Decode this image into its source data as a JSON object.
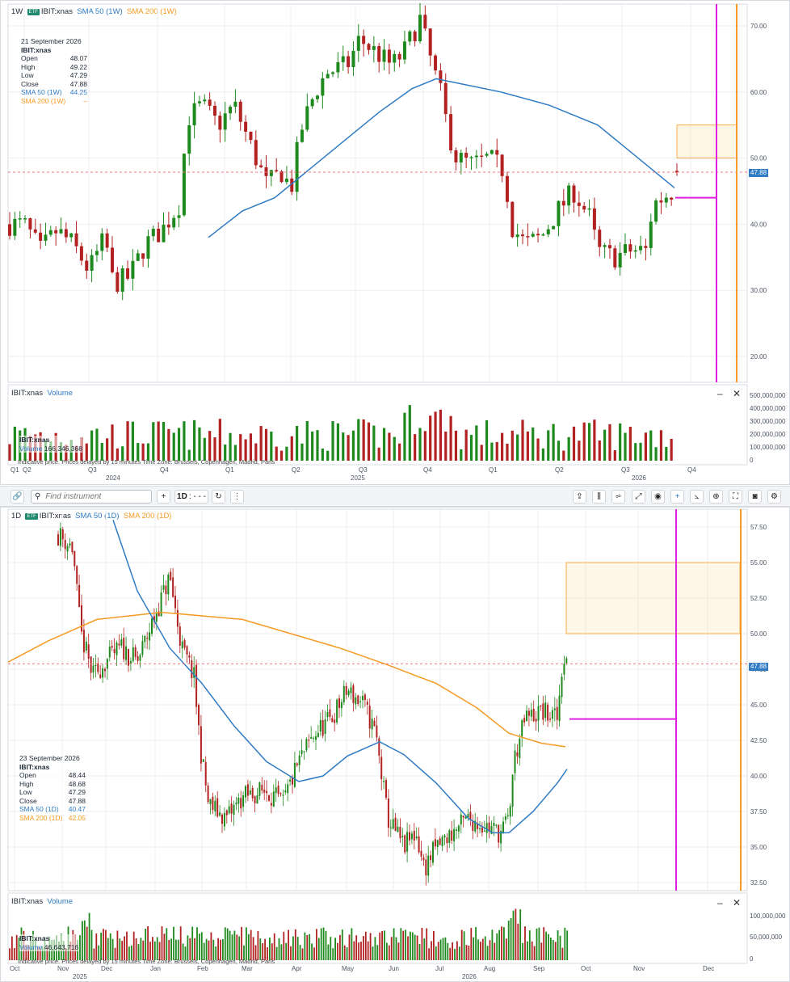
{
  "colors": {
    "up": "#1e8a1e",
    "down": "#b22222",
    "sma50": "#2f7bc4",
    "sma200": "#f59a23",
    "magenta": "#e020e0",
    "last_price_bg": "#2f7bc4"
  },
  "weekly": {
    "interval": "1W",
    "symbol": "IBIT:xnas",
    "sma50_label": "SMA 50 (1W)",
    "sma200_label": "SMA 200 (1W)",
    "y_ticks": [
      "70.00",
      "60.00",
      "50.00",
      "40.00",
      "30.00",
      "20.00"
    ],
    "last_price": "47.88",
    "legend": {
      "date": "21 September 2026",
      "symbol": "IBIT:xnas",
      "rows": [
        {
          "k": "Open",
          "v": "48.07"
        },
        {
          "k": "High",
          "v": "49.22"
        },
        {
          "k": "Low",
          "v": "47.29"
        },
        {
          "k": "Close",
          "v": "47.88"
        }
      ],
      "sma50": {
        "k": "SMA 50 (1W)",
        "v": "44.25"
      },
      "sma200": {
        "k": "SMA 200 (1W)",
        "v": "–"
      }
    },
    "volume": {
      "symbol": "IBIT:xnas",
      "label": "Volume",
      "y_ticks": [
        "500,000,000",
        "400,000,000",
        "300,000,000",
        "200,000,000",
        "100,000,000",
        "0"
      ],
      "legend_symbol": "IBIT:xnas",
      "legend_volume_label": "Volume",
      "legend_volume_value": "166,346,368",
      "footer": "Indicative price. Prices delayed by 15 minutes    Time Zone: Brussels, Copenhagen, Madrid, Paris",
      "x_top": [
        "Q1",
        "Q2",
        "Q3",
        "Q4",
        "Q1",
        "Q2",
        "Q3",
        "Q4",
        "Q1",
        "Q2",
        "Q3",
        "Q4"
      ],
      "x_years": [
        "2024",
        "2025",
        "2026"
      ]
    }
  },
  "toolbar": {
    "search_placeholder": "Find instrument",
    "add": "+",
    "interval": "1D",
    "interval_dashes": ": - - -"
  },
  "daily": {
    "interval": "1D",
    "symbol": "IBIT:xnas",
    "sma50_label": "SMA 50 (1D)",
    "sma200_label": "SMA 200 (1D)",
    "y_ticks": [
      "57.50",
      "55.00",
      "52.50",
      "50.00",
      "47.50",
      "45.00",
      "42.50",
      "40.00",
      "37.50",
      "35.00",
      "32.50"
    ],
    "last_price": "47.88",
    "legend": {
      "date": "23 September 2026",
      "symbol": "IBIT:xnas",
      "rows": [
        {
          "k": "Open",
          "v": "48.44"
        },
        {
          "k": "High",
          "v": "48.68"
        },
        {
          "k": "Low",
          "v": "47.29"
        },
        {
          "k": "Close",
          "v": "47.88"
        }
      ],
      "sma50": {
        "k": "SMA 50 (1D)",
        "v": "40.47"
      },
      "sma200": {
        "k": "SMA 200 (1D)",
        "v": "42.05"
      }
    },
    "volume": {
      "symbol": "IBIT:xnas",
      "label": "Volume",
      "y_ticks": [
        "100,000,000",
        "50,000,000",
        "0"
      ],
      "legend_symbol": "IBIT:xnas",
      "legend_volume_label": "Volume",
      "legend_volume_value": "46,643,716",
      "footer": "Indicative price. Prices delayed by 15 minutes    Time Zone: Brussels, Copenhagen, Madrid, Paris",
      "x_months": [
        "Oct",
        "Nov",
        "Dec",
        "Jan",
        "Feb",
        "Mar",
        "Apr",
        "May",
        "Jun",
        "Jul",
        "Aug",
        "Sep",
        "Oct",
        "Nov",
        "Dec"
      ],
      "x_years": [
        "2025",
        "2026"
      ]
    }
  },
  "chart_data": [
    {
      "type": "candlestick",
      "title": "IBIT:xnas 1W",
      "ylim": [
        15,
        73
      ],
      "series": [
        {
          "name": "SMA 50 (1W)"
        },
        {
          "name": "SMA 200 (1W)"
        }
      ],
      "last_close": 47.88
    },
    {
      "type": "candlestick",
      "title": "IBIT:xnas 1D",
      "ylim": [
        32,
        58.5
      ],
      "series": [
        {
          "name": "SMA 50 (1D)"
        },
        {
          "name": "SMA 200 (1D)"
        }
      ],
      "last_close": 47.88
    }
  ]
}
